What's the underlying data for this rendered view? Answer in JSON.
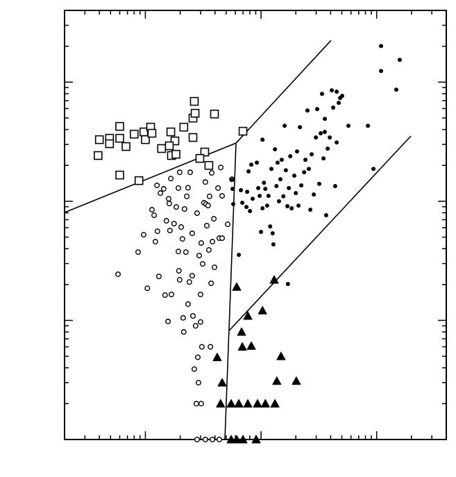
{
  "chart_data": {
    "type": "scatter",
    "log_x": true,
    "log_y": true,
    "xlim": [
      2,
      4000
    ],
    "ylim": [
      0.1,
      400
    ],
    "xticks": [
      10,
      100,
      1000
    ],
    "xminorticks": [
      3,
      4,
      5,
      6,
      7,
      8,
      9,
      20,
      30,
      40,
      50,
      60,
      70,
      80,
      90,
      200,
      300,
      400,
      500,
      600,
      700,
      800,
      900,
      2000,
      3000,
      4000
    ],
    "yticks": [
      1,
      10,
      100
    ],
    "yminorticks": [
      0.2,
      0.3,
      0.4,
      0.5,
      0.6,
      0.7,
      0.8,
      0.9,
      2,
      3,
      4,
      5,
      6,
      7,
      8,
      9,
      20,
      30,
      40,
      50,
      60,
      70,
      80,
      90,
      200,
      300,
      400
    ],
    "series": [
      {
        "marker": "square",
        "filled": false,
        "color": "#000000",
        "x": [
          4.0,
          4.9,
          4.9,
          6.0,
          6.0,
          6.8,
          8.0,
          9.7,
          10.0,
          11.1,
          11.4,
          13.8,
          16.6,
          16.8,
          18.0,
          21.5,
          25.8,
          26.5,
          26.9,
          25.8,
          32.6,
          35.4,
          39.6,
          69.8,
          6.0,
          8.8,
          3.9,
          16.1,
          18.4,
          29.6
        ],
        "y": [
          32.9,
          33.8,
          30.4,
          33.8,
          42.5,
          28.8,
          36.6,
          38.2,
          32.9,
          41.9,
          37.2,
          27.7,
          38.2,
          24.2,
          32.1,
          41.9,
          49.9,
          68.9,
          54.8,
          34.3,
          25.9,
          20.0,
          54.0,
          38.7,
          16.6,
          14.9,
          24.2,
          29.2,
          24.8,
          22.9
        ]
      },
      {
        "marker": "circle",
        "filled": false,
        "color": "#000000",
        "x": [
          5.8,
          8.65,
          9.66,
          10.4,
          11.4,
          11.9,
          12.2,
          12.7,
          13.1,
          12.6,
          13.5,
          14.4,
          14.8,
          15.9,
          15.2,
          15.7,
          16.3,
          16.8,
          16.6,
          17.7,
          18.5,
          19.3,
          19.3,
          19.8,
          19.5,
          20.4,
          19.8,
          21.2,
          21.5,
          21.8,
          22.4,
          22.8,
          23.4,
          23.4,
          24.0,
          24.4,
          25.4,
          25.8,
          26.5,
          27.2,
          27.6,
          28.0,
          28.4,
          28.8,
          29.2,
          30.0,
          30.4,
          30.0,
          30.8,
          31.3,
          32.1,
          33.0,
          34.0,
          35.4,
          35.9,
          36.5,
          37.0,
          37.5,
          38.0,
          39.1,
          39.6,
          42.5,
          43.6,
          44.9,
          46.1,
          51.5,
          56.0,
          46.1,
          28.0,
          33.0,
          38.0,
          43.6,
          16.1,
          33.5,
          25.4,
          30.4,
          34.9,
          20.9
        ],
        "y": [
          2.44,
          3.74,
          5.24,
          1.86,
          8.49,
          7.63,
          4.58,
          5.6,
          2.34,
          13.6,
          11.7,
          12.7,
          1.63,
          10.5,
          6.85,
          0.98,
          5.68,
          1.65,
          15.5,
          6.49,
          8.95,
          12.9,
          3.79,
          2.19,
          2.61,
          6.07,
          17.5,
          1.05,
          0.8,
          8.61,
          3.74,
          11.0,
          13.0,
          1.37,
          2.1,
          17.5,
          2.37,
          1.09,
          0.39,
          0.9,
          0.2,
          7.94,
          0.49,
          0.3,
          3.5,
          1.65,
          0.2,
          0.97,
          0.6,
          2.98,
          9.71,
          14.5,
          6.24,
          3.9,
          11.0,
          0.6,
          2.05,
          17.3,
          4.58,
          7.13,
          2.79,
          12.9,
          4.9,
          19.2,
          11.1,
          6.41,
          15.3,
          4.9,
          0.1,
          0.1,
          0.1,
          0.1,
          9.57,
          9.46,
          5.38,
          4.46,
          9.2,
          4.83
        ]
      },
      {
        "marker": "dot",
        "filled": true,
        "color": "#000000",
        "x": [
          56.0,
          56.7,
          57.5,
          64.3,
          67.0,
          68.9,
          74.8,
          75.9,
          78.0,
          80.2,
          82.4,
          84.7,
          92.0,
          94.6,
          97.3,
          100,
          103,
          103,
          106,
          109,
          113,
          116,
          120,
          123,
          126,
          128,
          132,
          136,
          139,
          143,
          147,
          151,
          156,
          160,
          164,
          169,
          174,
          179,
          184,
          194,
          200,
          205,
          211,
          217,
          223,
          236,
          242,
          252,
          259,
          267,
          274,
          286,
          298,
          306,
          319,
          328,
          337,
          347,
          356,
          366,
          377,
          393,
          409,
          421,
          438,
          451,
          470,
          483,
          504,
          570,
          840,
          938,
          1092,
          1092,
          1479,
          1585,
          171,
          356,
          451
        ],
        "y": [
          15.1,
          12.7,
          9.46,
          3.55,
          12.4,
          9.71,
          8.95,
          12.0,
          17.8,
          8.27,
          20.3,
          10.5,
          21.1,
          12.9,
          11.1,
          5.53,
          32.9,
          8.73,
          14.3,
          12.7,
          9.2,
          11.1,
          6.15,
          18.7,
          5.38,
          4.34,
          27.3,
          13.4,
          21.1,
          10.0,
          15.3,
          22.3,
          11.0,
          43.0,
          18.2,
          9.08,
          12.9,
          23.9,
          8.73,
          16.4,
          11.7,
          26.2,
          9.2,
          41.9,
          13.6,
          17.5,
          22.3,
          57.8,
          18.7,
          8.49,
          24.8,
          11.4,
          34.3,
          59.4,
          14.0,
          37.2,
          79.8,
          22.9,
          49.2,
          7.63,
          27.7,
          34.3,
          85.3,
          61.1,
          13.4,
          83.2,
          67.0,
          73.6,
          76.7,
          43.0,
          43.0,
          18.7,
          201,
          124,
          86.5,
          154,
          2.02,
          38.2,
          31.2
        ]
      },
      {
        "marker": "triangle",
        "filled": true,
        "color": "#000000",
        "x": [
          61.6,
          76.9,
          103,
          130,
          67.9,
          68.9,
          82.4,
          41.8,
          149,
          46.1,
          137,
          202,
          44.7,
          55.2,
          64.3,
          76.9,
          93.3,
          109,
          132,
          55.2,
          61.6,
          69.8,
          90.8
        ],
        "y": [
          1.91,
          1.09,
          1.21,
          2.19,
          0.8,
          0.6,
          0.61,
          0.49,
          0.5,
          0.3,
          0.31,
          0.31,
          0.2,
          0.2,
          0.2,
          0.2,
          0.2,
          0.2,
          0.2,
          0.1,
          0.1,
          0.1,
          0.1
        ]
      }
    ],
    "lines": [
      {
        "color": "#000000",
        "x": [
          2,
          60.8,
          403
        ],
        "y": [
          8.05,
          30.8,
          224
        ]
      },
      {
        "color": "#000000",
        "x": [
          60.8,
          48.7
        ],
        "y": [
          30.8,
          0.1
        ]
      },
      {
        "color": "#000000",
        "x": [
          53,
          1977
        ],
        "y": [
          0.82,
          35.3
        ]
      }
    ]
  }
}
